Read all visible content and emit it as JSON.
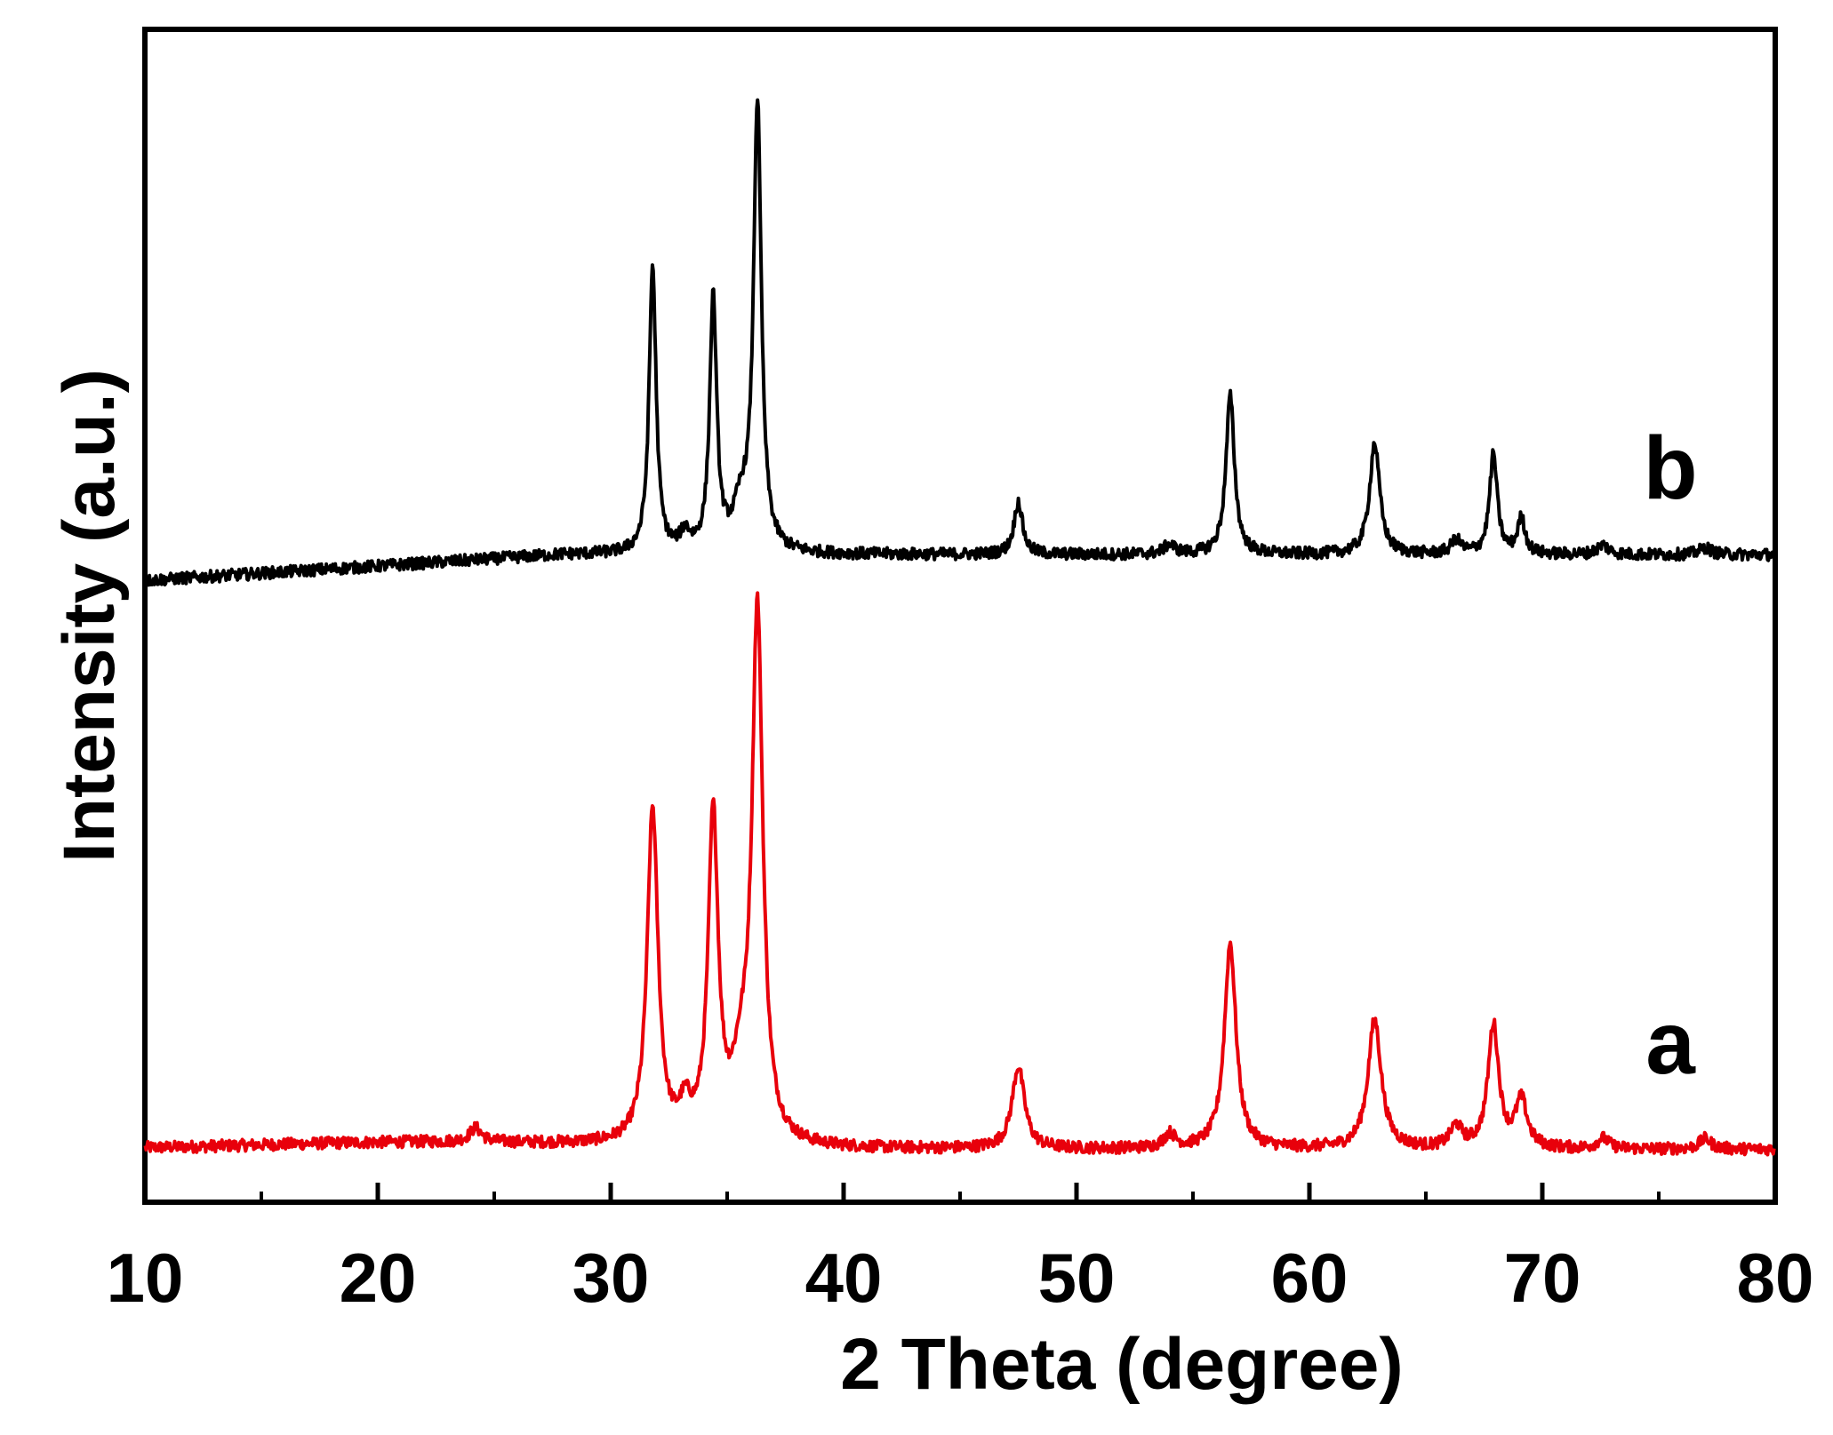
{
  "chart_data": {
    "type": "line",
    "title": "",
    "xlabel": "2 Theta (degree)",
    "ylabel": "Intensity (a.u.)",
    "xlim": [
      10,
      80
    ],
    "ylim": [
      0,
      100
    ],
    "x_ticks": [
      {
        "value": 10,
        "label": "10"
      },
      {
        "value": 20,
        "label": "20"
      },
      {
        "value": 30,
        "label": "30"
      },
      {
        "value": 40,
        "label": "40"
      },
      {
        "value": 50,
        "label": "50"
      },
      {
        "value": 60,
        "label": "60"
      },
      {
        "value": 70,
        "label": "70"
      },
      {
        "value": 80,
        "label": "80"
      }
    ],
    "y_ticks_shown": false,
    "grid": false,
    "legend": "none",
    "series": [
      {
        "name": "a",
        "color": "#e8000b",
        "baseline": 4.5,
        "peaks": [
          {
            "x": 24.2,
            "height": 1.2,
            "width": 0.3
          },
          {
            "x": 31.8,
            "height": 28.5,
            "width": 0.28
          },
          {
            "x": 33.2,
            "height": 2.5,
            "width": 0.3
          },
          {
            "x": 34.4,
            "height": 27.5,
            "width": 0.26
          },
          {
            "x": 35.6,
            "height": 5.0,
            "width": 0.45
          },
          {
            "x": 36.3,
            "height": 45.0,
            "width": 0.28
          },
          {
            "x": 47.5,
            "height": 7.0,
            "width": 0.32
          },
          {
            "x": 54.0,
            "height": 1.2,
            "width": 0.3
          },
          {
            "x": 56.6,
            "height": 17.5,
            "width": 0.3
          },
          {
            "x": 62.8,
            "height": 11.0,
            "width": 0.34
          },
          {
            "x": 66.3,
            "height": 1.8,
            "width": 0.3
          },
          {
            "x": 67.9,
            "height": 10.5,
            "width": 0.28
          },
          {
            "x": 69.1,
            "height": 4.0,
            "width": 0.3
          },
          {
            "x": 72.6,
            "height": 0.9,
            "width": 0.3
          },
          {
            "x": 77.0,
            "height": 0.9,
            "width": 0.3
          }
        ]
      },
      {
        "name": "b",
        "color": "#000000",
        "baseline": 53.0,
        "peaks": [
          {
            "x": 31.8,
            "height": 24.5,
            "width": 0.18
          },
          {
            "x": 33.2,
            "height": 1.5,
            "width": 0.25
          },
          {
            "x": 34.4,
            "height": 21.5,
            "width": 0.18
          },
          {
            "x": 35.6,
            "height": 3.5,
            "width": 0.4
          },
          {
            "x": 36.3,
            "height": 38.0,
            "width": 0.2
          },
          {
            "x": 47.5,
            "height": 4.5,
            "width": 0.22
          },
          {
            "x": 54.0,
            "height": 0.8,
            "width": 0.3
          },
          {
            "x": 56.6,
            "height": 13.5,
            "width": 0.22
          },
          {
            "x": 62.8,
            "height": 9.5,
            "width": 0.26
          },
          {
            "x": 66.3,
            "height": 1.2,
            "width": 0.25
          },
          {
            "x": 67.9,
            "height": 8.5,
            "width": 0.2
          },
          {
            "x": 69.1,
            "height": 3.0,
            "width": 0.2
          },
          {
            "x": 72.6,
            "height": 0.8,
            "width": 0.3
          },
          {
            "x": 77.0,
            "height": 0.6,
            "width": 0.3
          }
        ]
      }
    ],
    "labels": [
      {
        "text": "b",
        "series": "b",
        "x": 75.5,
        "y": 60
      },
      {
        "text": "a",
        "series": "a",
        "x": 75.5,
        "y": 11
      }
    ]
  }
}
